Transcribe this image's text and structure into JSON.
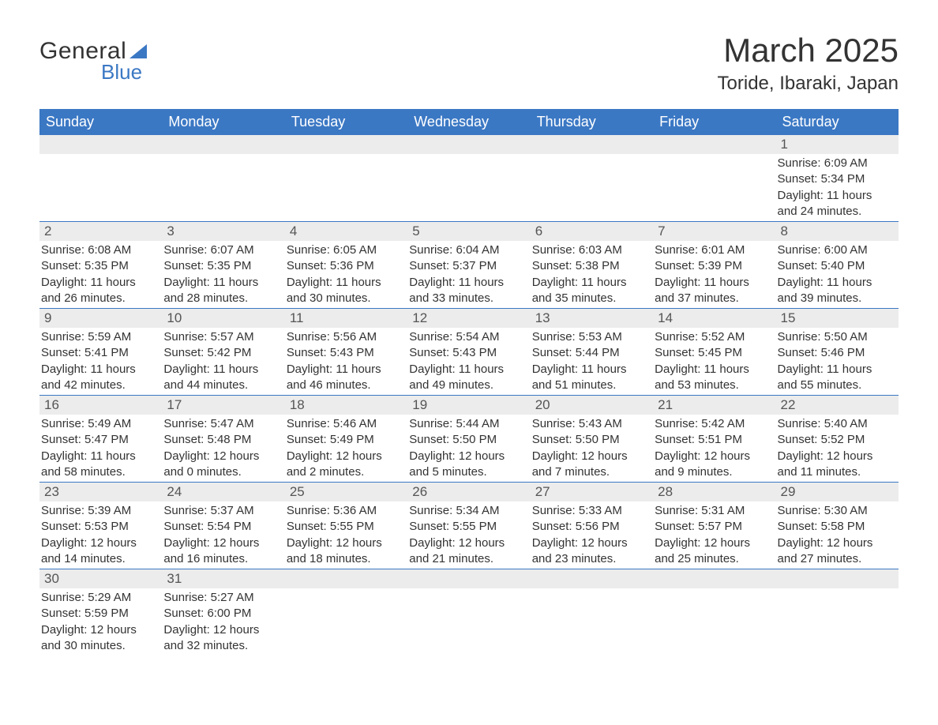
{
  "logo": {
    "general": "General",
    "blue": "Blue"
  },
  "title": "March 2025",
  "location": "Toride, Ibaraki, Japan",
  "colors": {
    "brand_blue": "#3b78c4",
    "header_text": "#ffffff",
    "body_text": "#333333",
    "day_bg": "#ececec",
    "background": "#ffffff"
  },
  "weekdays": [
    "Sunday",
    "Monday",
    "Tuesday",
    "Wednesday",
    "Thursday",
    "Friday",
    "Saturday"
  ],
  "layout": {
    "leading_blanks": 6,
    "num_days": 31
  },
  "days": {
    "1": {
      "sunrise": "Sunrise: 6:09 AM",
      "sunset": "Sunset: 5:34 PM",
      "dl1": "Daylight: 11 hours",
      "dl2": "and 24 minutes."
    },
    "2": {
      "sunrise": "Sunrise: 6:08 AM",
      "sunset": "Sunset: 5:35 PM",
      "dl1": "Daylight: 11 hours",
      "dl2": "and 26 minutes."
    },
    "3": {
      "sunrise": "Sunrise: 6:07 AM",
      "sunset": "Sunset: 5:35 PM",
      "dl1": "Daylight: 11 hours",
      "dl2": "and 28 minutes."
    },
    "4": {
      "sunrise": "Sunrise: 6:05 AM",
      "sunset": "Sunset: 5:36 PM",
      "dl1": "Daylight: 11 hours",
      "dl2": "and 30 minutes."
    },
    "5": {
      "sunrise": "Sunrise: 6:04 AM",
      "sunset": "Sunset: 5:37 PM",
      "dl1": "Daylight: 11 hours",
      "dl2": "and 33 minutes."
    },
    "6": {
      "sunrise": "Sunrise: 6:03 AM",
      "sunset": "Sunset: 5:38 PM",
      "dl1": "Daylight: 11 hours",
      "dl2": "and 35 minutes."
    },
    "7": {
      "sunrise": "Sunrise: 6:01 AM",
      "sunset": "Sunset: 5:39 PM",
      "dl1": "Daylight: 11 hours",
      "dl2": "and 37 minutes."
    },
    "8": {
      "sunrise": "Sunrise: 6:00 AM",
      "sunset": "Sunset: 5:40 PM",
      "dl1": "Daylight: 11 hours",
      "dl2": "and 39 minutes."
    },
    "9": {
      "sunrise": "Sunrise: 5:59 AM",
      "sunset": "Sunset: 5:41 PM",
      "dl1": "Daylight: 11 hours",
      "dl2": "and 42 minutes."
    },
    "10": {
      "sunrise": "Sunrise: 5:57 AM",
      "sunset": "Sunset: 5:42 PM",
      "dl1": "Daylight: 11 hours",
      "dl2": "and 44 minutes."
    },
    "11": {
      "sunrise": "Sunrise: 5:56 AM",
      "sunset": "Sunset: 5:43 PM",
      "dl1": "Daylight: 11 hours",
      "dl2": "and 46 minutes."
    },
    "12": {
      "sunrise": "Sunrise: 5:54 AM",
      "sunset": "Sunset: 5:43 PM",
      "dl1": "Daylight: 11 hours",
      "dl2": "and 49 minutes."
    },
    "13": {
      "sunrise": "Sunrise: 5:53 AM",
      "sunset": "Sunset: 5:44 PM",
      "dl1": "Daylight: 11 hours",
      "dl2": "and 51 minutes."
    },
    "14": {
      "sunrise": "Sunrise: 5:52 AM",
      "sunset": "Sunset: 5:45 PM",
      "dl1": "Daylight: 11 hours",
      "dl2": "and 53 minutes."
    },
    "15": {
      "sunrise": "Sunrise: 5:50 AM",
      "sunset": "Sunset: 5:46 PM",
      "dl1": "Daylight: 11 hours",
      "dl2": "and 55 minutes."
    },
    "16": {
      "sunrise": "Sunrise: 5:49 AM",
      "sunset": "Sunset: 5:47 PM",
      "dl1": "Daylight: 11 hours",
      "dl2": "and 58 minutes."
    },
    "17": {
      "sunrise": "Sunrise: 5:47 AM",
      "sunset": "Sunset: 5:48 PM",
      "dl1": "Daylight: 12 hours",
      "dl2": "and 0 minutes."
    },
    "18": {
      "sunrise": "Sunrise: 5:46 AM",
      "sunset": "Sunset: 5:49 PM",
      "dl1": "Daylight: 12 hours",
      "dl2": "and 2 minutes."
    },
    "19": {
      "sunrise": "Sunrise: 5:44 AM",
      "sunset": "Sunset: 5:50 PM",
      "dl1": "Daylight: 12 hours",
      "dl2": "and 5 minutes."
    },
    "20": {
      "sunrise": "Sunrise: 5:43 AM",
      "sunset": "Sunset: 5:50 PM",
      "dl1": "Daylight: 12 hours",
      "dl2": "and 7 minutes."
    },
    "21": {
      "sunrise": "Sunrise: 5:42 AM",
      "sunset": "Sunset: 5:51 PM",
      "dl1": "Daylight: 12 hours",
      "dl2": "and 9 minutes."
    },
    "22": {
      "sunrise": "Sunrise: 5:40 AM",
      "sunset": "Sunset: 5:52 PM",
      "dl1": "Daylight: 12 hours",
      "dl2": "and 11 minutes."
    },
    "23": {
      "sunrise": "Sunrise: 5:39 AM",
      "sunset": "Sunset: 5:53 PM",
      "dl1": "Daylight: 12 hours",
      "dl2": "and 14 minutes."
    },
    "24": {
      "sunrise": "Sunrise: 5:37 AM",
      "sunset": "Sunset: 5:54 PM",
      "dl1": "Daylight: 12 hours",
      "dl2": "and 16 minutes."
    },
    "25": {
      "sunrise": "Sunrise: 5:36 AM",
      "sunset": "Sunset: 5:55 PM",
      "dl1": "Daylight: 12 hours",
      "dl2": "and 18 minutes."
    },
    "26": {
      "sunrise": "Sunrise: 5:34 AM",
      "sunset": "Sunset: 5:55 PM",
      "dl1": "Daylight: 12 hours",
      "dl2": "and 21 minutes."
    },
    "27": {
      "sunrise": "Sunrise: 5:33 AM",
      "sunset": "Sunset: 5:56 PM",
      "dl1": "Daylight: 12 hours",
      "dl2": "and 23 minutes."
    },
    "28": {
      "sunrise": "Sunrise: 5:31 AM",
      "sunset": "Sunset: 5:57 PM",
      "dl1": "Daylight: 12 hours",
      "dl2": "and 25 minutes."
    },
    "29": {
      "sunrise": "Sunrise: 5:30 AM",
      "sunset": "Sunset: 5:58 PM",
      "dl1": "Daylight: 12 hours",
      "dl2": "and 27 minutes."
    },
    "30": {
      "sunrise": "Sunrise: 5:29 AM",
      "sunset": "Sunset: 5:59 PM",
      "dl1": "Daylight: 12 hours",
      "dl2": "and 30 minutes."
    },
    "31": {
      "sunrise": "Sunrise: 5:27 AM",
      "sunset": "Sunset: 6:00 PM",
      "dl1": "Daylight: 12 hours",
      "dl2": "and 32 minutes."
    }
  }
}
